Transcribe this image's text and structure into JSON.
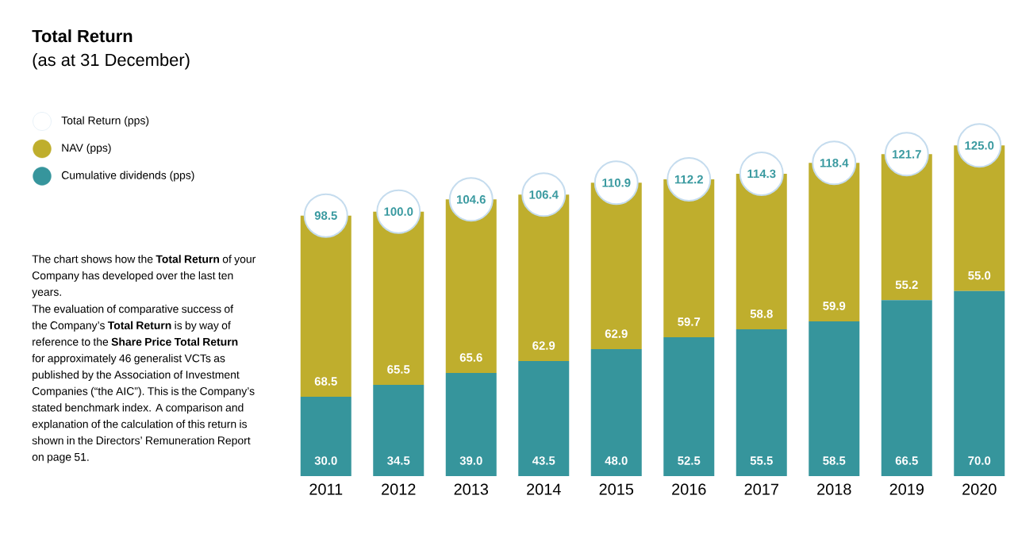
{
  "chart_data": {
    "type": "bar",
    "title": "Total Return",
    "subtitle": "(as at 31 December)",
    "categories": [
      "2011",
      "2012",
      "2013",
      "2014",
      "2015",
      "2016",
      "2017",
      "2018",
      "2019",
      "2020"
    ],
    "stacked": true,
    "legend": "left",
    "series": [
      {
        "name": "Cumulative dividends (pps)",
        "color": "#36959c",
        "values": [
          30.0,
          34.5,
          39.0,
          43.5,
          48.0,
          52.5,
          55.5,
          58.5,
          66.5,
          70.0
        ],
        "value_labels": [
          "30.0",
          "34.5",
          "39.0",
          "43.5",
          "48.0",
          "52.5",
          "55.5",
          "58.5",
          "66.5",
          "70.0"
        ]
      },
      {
        "name": "NAV (pps)",
        "color": "#bfae2d",
        "values": [
          68.5,
          65.5,
          65.6,
          62.9,
          62.9,
          59.7,
          58.8,
          59.9,
          55.2,
          55.0
        ],
        "value_labels": [
          "68.5",
          "65.5",
          "65.6",
          "62.9",
          "62.9",
          "59.7",
          "58.8",
          "59.9",
          "55.2",
          "55.0"
        ]
      },
      {
        "name": "Total Return (pps)",
        "type": "scatter",
        "marker": "circle",
        "color": "#ffffff",
        "values": [
          98.5,
          100.0,
          104.6,
          106.4,
          110.9,
          112.2,
          114.3,
          118.4,
          121.7,
          125.0
        ],
        "value_labels": [
          "98.5",
          "100.0",
          "104.6",
          "106.4",
          "110.9",
          "112.2",
          "114.3",
          "118.4",
          "121.7",
          "125.0"
        ]
      }
    ],
    "annotations": [
      "The chart shows how the **Total Return** of your Company has developed over the last ten years.",
      "The evaluation of comparative success of the Company’s **Total Return** is by way of reference to the **Share Price Total Return** for approximately 46 generalist VCTs as published by the Association of Investment Companies (“the AIC”). This is the Company’s stated benchmark index. A comparison and explanation of the calculation of this return is shown in the Directors’ Remuneration Report on page 51."
    ]
  }
}
